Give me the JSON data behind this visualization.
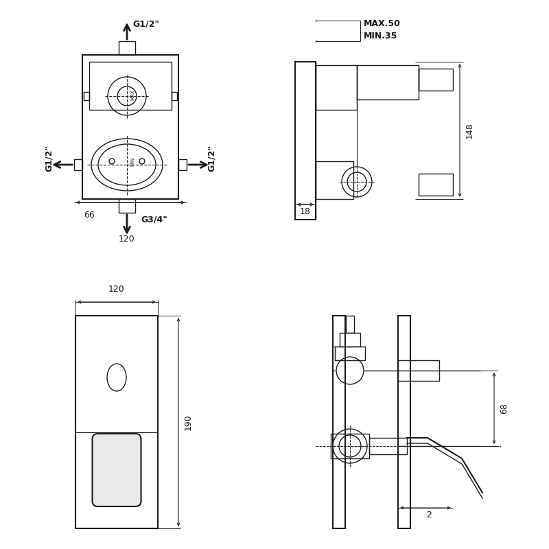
{
  "bg_color": "#ffffff",
  "line_color": "#1a1a1a",
  "dim_color": "#1a1a1a",
  "annotations": {
    "top_left_view": {
      "label_g12_top": "G1/2\"",
      "label_g12_left": "G1/2\"",
      "label_g12_right": "G1/2\"",
      "label_g34_bottom": "G3/4\"",
      "dim_66": "66",
      "dim_120": "120"
    },
    "top_right_view": {
      "label_max50": "MAX.50",
      "label_min35": "MIN.35",
      "dim_148": "148",
      "dim_18": "18"
    },
    "bottom_left_view": {
      "dim_120": "120",
      "dim_190": "190"
    },
    "bottom_right_view": {
      "dim_68": "68",
      "dim_2": "2"
    }
  },
  "font_size_labels": 9,
  "font_size_dims": 9
}
